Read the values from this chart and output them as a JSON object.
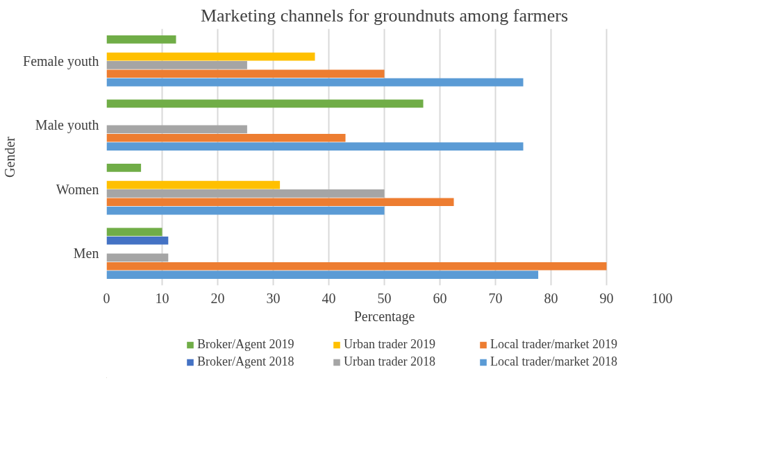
{
  "chart_data": {
    "type": "bar",
    "orientation": "horizontal",
    "title": "Marketing channels for groundnuts among farmers",
    "xlabel": "Percentage",
    "ylabel": "Gender",
    "categories": [
      "Female youth",
      "Male youth",
      "Women",
      "Men"
    ],
    "series": [
      {
        "name": "Broker/Agent 2019",
        "color": "#70ad47",
        "values": [
          12.5,
          57,
          6.2,
          10
        ]
      },
      {
        "name": "Broker/Agent 2018",
        "color": "#4472c4",
        "values": [
          null,
          null,
          null,
          11.1
        ]
      },
      {
        "name": "Urban trader 2019",
        "color": "#ffc000",
        "values": [
          37.5,
          null,
          31.2,
          null
        ]
      },
      {
        "name": "Urban trader 2018",
        "color": "#a5a5a5",
        "values": [
          25.3,
          25.3,
          50,
          11.1
        ]
      },
      {
        "name": "Local trader/market 2019",
        "color": "#ed7d31",
        "values": [
          50,
          43,
          62.5,
          90
        ]
      },
      {
        "name": "Local trader/market 2018",
        "color": "#5b9bd5",
        "values": [
          75,
          75,
          50,
          77.7
        ]
      }
    ],
    "xlim": [
      0,
      100
    ],
    "xticks": [
      0,
      10,
      20,
      30,
      40,
      50,
      60,
      70,
      80,
      90,
      100
    ],
    "grid": "x",
    "legend": "bottom"
  }
}
